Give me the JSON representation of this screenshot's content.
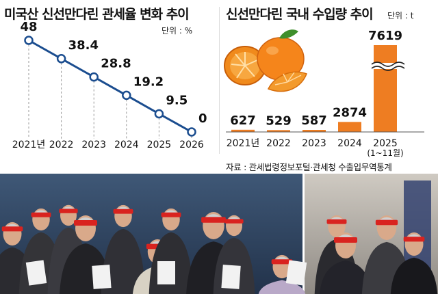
{
  "charts": {
    "tariff": {
      "title": "미국산 신선만다린 관세율 변화 추이",
      "unit": "단위 : %"
    },
    "imports": {
      "title": "신선만다린 국내 수입량 추이",
      "unit": "단위 : t"
    }
  },
  "source": "자료 : 관세법령정보포털·관세청 수출입무역통계",
  "colors": {
    "line": "#1b4d8f",
    "bar": "#ee7d22",
    "grid": "#9a9a9a",
    "text": "#111111"
  },
  "chart_data": [
    {
      "type": "line",
      "title": "미국산 신선만다린 관세율 변화 추이",
      "unit": "%",
      "x": [
        "2021년",
        "2022",
        "2023",
        "2024",
        "2025",
        "2026"
      ],
      "y": [
        48,
        38.4,
        28.8,
        19.2,
        9.5,
        0
      ],
      "labels": [
        "48",
        "38.4",
        "28.8",
        "19.2",
        "9.5",
        "0"
      ],
      "ylim": [
        0,
        48
      ],
      "grid": "vertical dashed drop lines"
    },
    {
      "type": "bar",
      "title": "신선만다린 국내 수입량 추이",
      "unit": "t",
      "categories": [
        "2021년",
        "2022",
        "2023",
        "2024",
        "2025"
      ],
      "category_notes": [
        "",
        "",
        "",
        "",
        "(1~11월)"
      ],
      "values": [
        627,
        529,
        587,
        2874,
        7619
      ],
      "labels": [
        "627",
        "529",
        "587",
        "2874",
        "7619"
      ],
      "axis_break": "last bar"
    }
  ]
}
